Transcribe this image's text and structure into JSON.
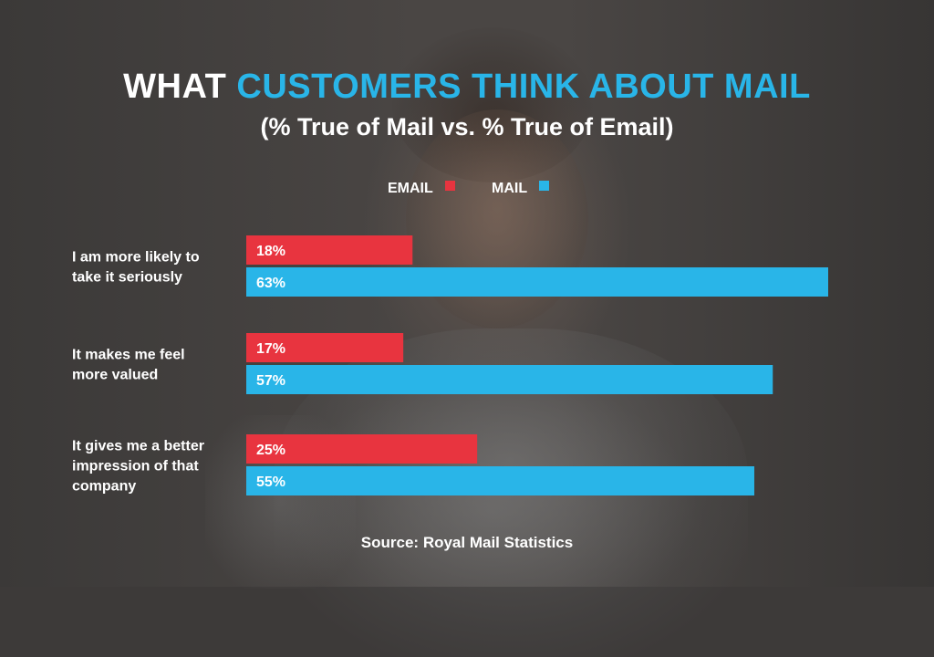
{
  "header": {
    "title_plain": "WHAT ",
    "title_accent": "CUSTOMERS THINK ABOUT MAIL",
    "subtitle": "(% True of Mail vs. % True of Email)"
  },
  "source": "Source: Royal Mail Statistics",
  "colors": {
    "email": "#e8343f",
    "mail": "#29b5e8",
    "accent": "#29b5e8"
  },
  "chart_data": {
    "type": "bar",
    "orientation": "horizontal",
    "title": "WHAT CUSTOMERS THINK ABOUT MAIL",
    "subtitle": "(% True of Mail vs. % True of Email)",
    "categories": [
      [
        "I am more likely to",
        "take it seriously"
      ],
      [
        "It makes me feel",
        "more valued"
      ],
      [
        "It gives me a better",
        "impression of that",
        "company"
      ]
    ],
    "series": [
      {
        "name": "EMAIL",
        "values": [
          18,
          17,
          25
        ],
        "labels": [
          "18%",
          "17%",
          "25%"
        ]
      },
      {
        "name": "MAIL",
        "values": [
          63,
          57,
          55
        ],
        "labels": [
          "63%",
          "57%",
          "55%"
        ]
      }
    ],
    "xlim": [
      0,
      63
    ],
    "grid": false,
    "legend": "top-center"
  }
}
